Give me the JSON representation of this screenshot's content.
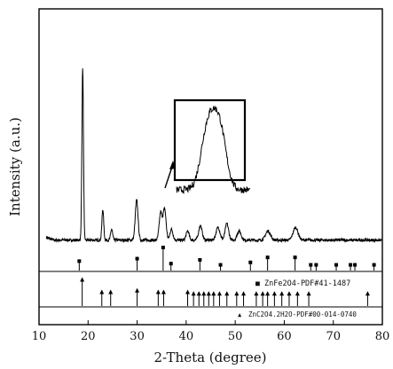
{
  "chart_data": {
    "type": "line",
    "xlabel": "2-Theta (degree)",
    "ylabel": "Intensity (a.u.)",
    "xlim": [
      10,
      80
    ],
    "x_ticks": [
      10,
      20,
      30,
      40,
      50,
      60,
      70,
      80
    ],
    "x_tick_labels": [
      "10",
      "20",
      "30",
      "40",
      "50",
      "60",
      "70",
      "80"
    ],
    "baseline": 0.06,
    "noise": 0.008,
    "peaks": [
      {
        "x": 18.9,
        "height": 0.94,
        "width": 0.16
      },
      {
        "x": 23.0,
        "height": 0.17,
        "width": 0.18
      },
      {
        "x": 24.8,
        "height": 0.06,
        "width": 0.2
      },
      {
        "x": 29.9,
        "height": 0.22,
        "width": 0.28
      },
      {
        "x": 34.8,
        "height": 0.15,
        "width": 0.3
      },
      {
        "x": 35.6,
        "height": 0.17,
        "width": 0.3
      },
      {
        "x": 37.0,
        "height": 0.06,
        "width": 0.3
      },
      {
        "x": 40.3,
        "height": 0.05,
        "width": 0.3
      },
      {
        "x": 42.9,
        "height": 0.08,
        "width": 0.35
      },
      {
        "x": 46.5,
        "height": 0.07,
        "width": 0.4
      },
      {
        "x": 48.3,
        "height": 0.09,
        "width": 0.35
      },
      {
        "x": 50.8,
        "height": 0.05,
        "width": 0.4
      },
      {
        "x": 56.7,
        "height": 0.05,
        "width": 0.5
      },
      {
        "x": 62.3,
        "height": 0.07,
        "width": 0.5
      }
    ],
    "references": [
      {
        "name": "ZnFe2O4-PDF#41-1487",
        "marker": "■",
        "lines": [
          {
            "x": 18.2,
            "h": 0.45
          },
          {
            "x": 30.0,
            "h": 0.55
          },
          {
            "x": 35.3,
            "h": 1.0
          },
          {
            "x": 36.9,
            "h": 0.35
          },
          {
            "x": 42.8,
            "h": 0.5
          },
          {
            "x": 47.0,
            "h": 0.3
          },
          {
            "x": 53.1,
            "h": 0.4
          },
          {
            "x": 56.6,
            "h": 0.6
          },
          {
            "x": 62.2,
            "h": 0.6
          },
          {
            "x": 65.4,
            "h": 0.3
          },
          {
            "x": 66.5,
            "h": 0.3
          },
          {
            "x": 70.6,
            "h": 0.3
          },
          {
            "x": 73.5,
            "h": 0.3
          },
          {
            "x": 74.4,
            "h": 0.3
          },
          {
            "x": 78.3,
            "h": 0.3
          }
        ]
      },
      {
        "name": "ZnC2O4.2H2O-PDF#00-014-0740",
        "marker": "▲",
        "lines": [
          {
            "x": 18.8,
            "h": 0.9
          },
          {
            "x": 22.8,
            "h": 0.5
          },
          {
            "x": 24.6,
            "h": 0.5
          },
          {
            "x": 30.0,
            "h": 0.55
          },
          {
            "x": 34.3,
            "h": 0.5
          },
          {
            "x": 35.4,
            "h": 0.5
          },
          {
            "x": 40.3,
            "h": 0.5
          },
          {
            "x": 41.5,
            "h": 0.45
          },
          {
            "x": 42.6,
            "h": 0.45
          },
          {
            "x": 43.6,
            "h": 0.45
          },
          {
            "x": 44.6,
            "h": 0.45
          },
          {
            "x": 45.6,
            "h": 0.45
          },
          {
            "x": 46.8,
            "h": 0.45
          },
          {
            "x": 48.3,
            "h": 0.45
          },
          {
            "x": 50.3,
            "h": 0.45
          },
          {
            "x": 51.7,
            "h": 0.45
          },
          {
            "x": 54.3,
            "h": 0.45
          },
          {
            "x": 55.6,
            "h": 0.45
          },
          {
            "x": 56.6,
            "h": 0.45
          },
          {
            "x": 58.0,
            "h": 0.45
          },
          {
            "x": 59.5,
            "h": 0.45
          },
          {
            "x": 61.0,
            "h": 0.45
          },
          {
            "x": 62.7,
            "h": 0.45
          },
          {
            "x": 65.0,
            "h": 0.45
          },
          {
            "x": 77.0,
            "h": 0.45
          }
        ]
      }
    ],
    "inset": {
      "description_of_content": "zoomed view of double peak",
      "peaks": [
        {
          "x": 0.42,
          "height": 0.85,
          "width": 0.09
        },
        {
          "x": 0.58,
          "height": 0.9,
          "width": 0.09
        }
      ]
    }
  }
}
